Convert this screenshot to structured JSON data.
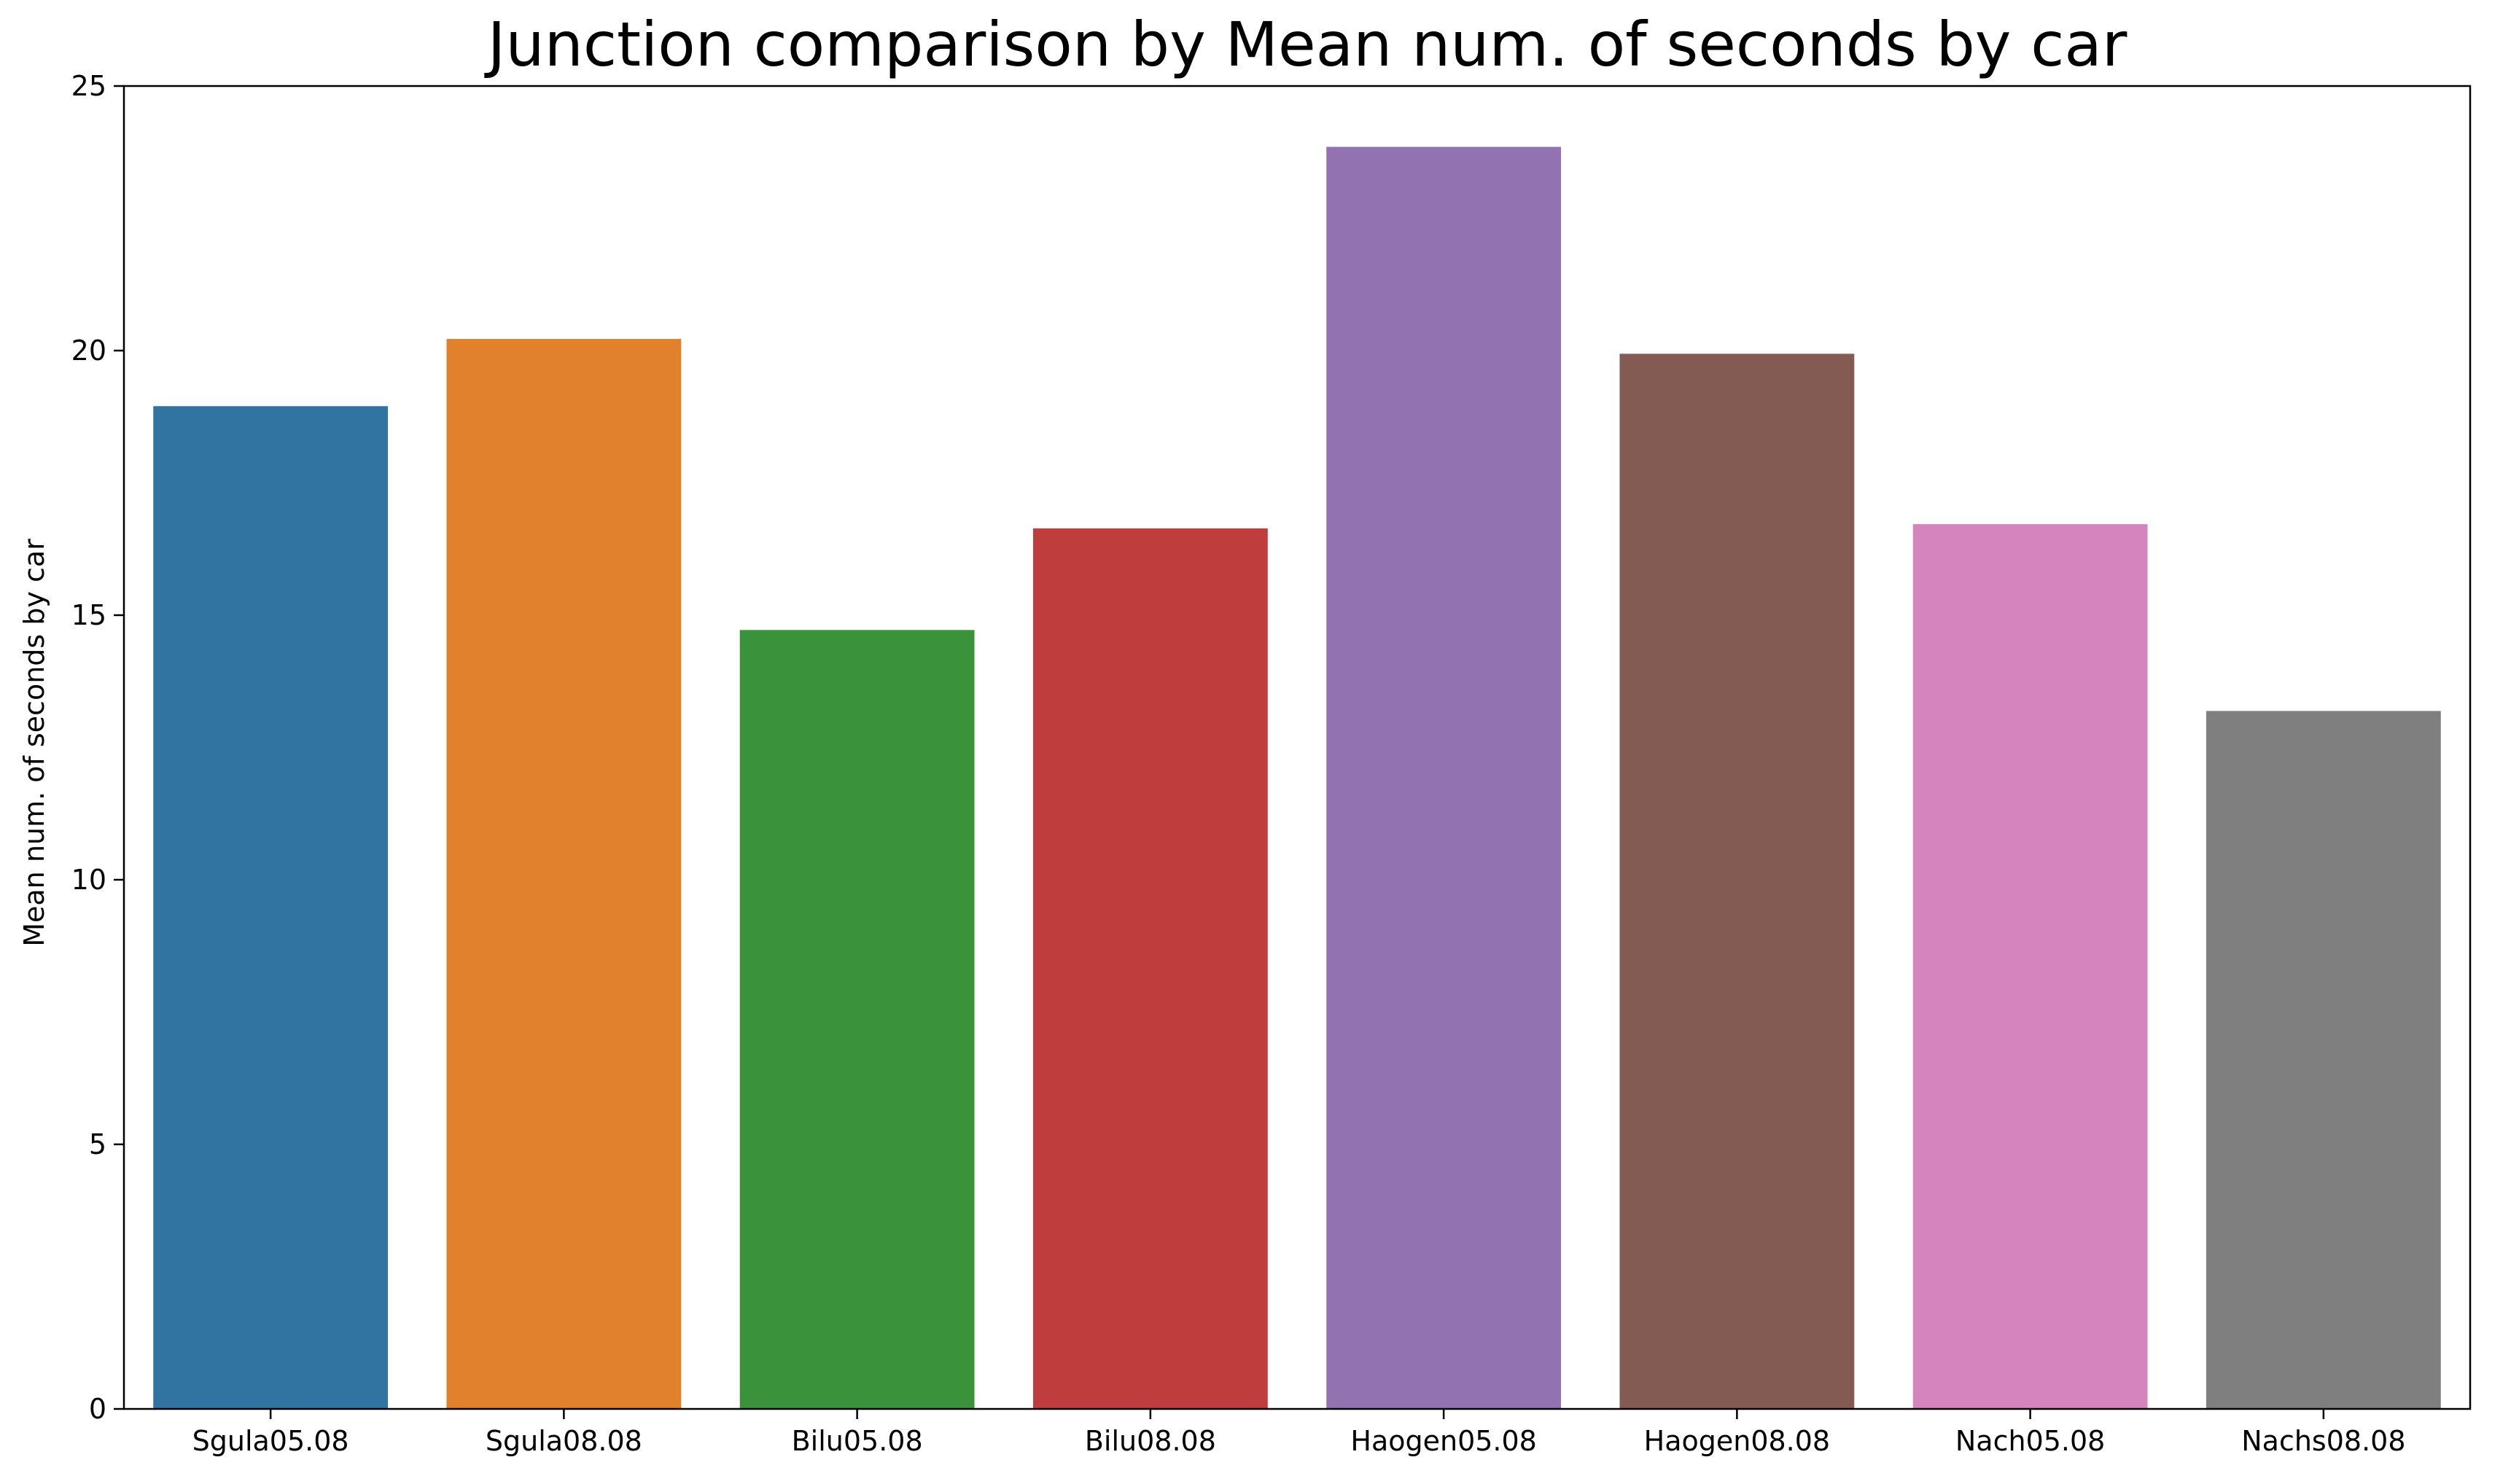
{
  "chart_data": {
    "type": "bar",
    "title": "Junction comparison by Mean num. of seconds by car",
    "xlabel": "",
    "ylabel": "Mean num. of seconds by car",
    "categories": [
      "Sgula05.08",
      "Sgula08.08",
      "Bilu05.08",
      "Bilu08.08",
      "Haogen05.08",
      "Haogen08.08",
      "Nach05.08",
      "Nachs08.08"
    ],
    "values": [
      18.95,
      20.22,
      14.72,
      16.64,
      23.85,
      19.94,
      16.72,
      13.19
    ],
    "colors": [
      "#3274a1",
      "#e1812c",
      "#3a923a",
      "#c03d3e",
      "#9372b2",
      "#845b53",
      "#d684bd",
      "#7f7f7f"
    ],
    "ylim": [
      0,
      25
    ],
    "yticks": [
      0,
      5,
      10,
      15,
      20,
      25
    ],
    "grid": false,
    "legend": "none"
  }
}
